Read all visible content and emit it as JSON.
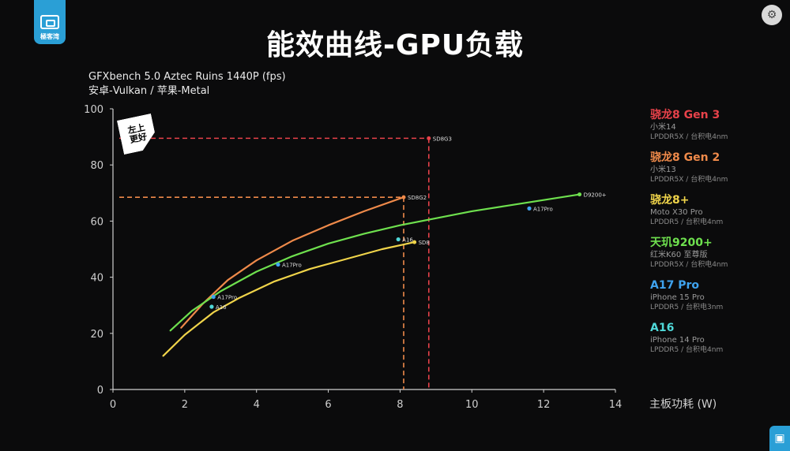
{
  "header": {
    "title": "能效曲线-GPU负载"
  },
  "logo": {
    "text": "極客湾"
  },
  "badge": {
    "text": "左上\n更好"
  },
  "chart_data": {
    "type": "line",
    "title": "GFXbench 5.0 Aztec Ruins 1440P (fps)",
    "subtitle": "安卓-Vulkan / 苹果-Metal",
    "xlabel": "主板功耗 (W)",
    "ylabel": "",
    "xlim": [
      0,
      14
    ],
    "ylim": [
      0,
      100
    ],
    "xticks": [
      0,
      2,
      4,
      6,
      8,
      10,
      12,
      14
    ],
    "yticks": [
      0,
      20,
      40,
      60,
      80,
      100
    ],
    "grid": false,
    "legend_position": "right",
    "series": [
      {
        "name": "骁龙8 Gen 3",
        "device": "小米14",
        "memory": "LPDDR5X / 台积电4nm",
        "color": "#e8424a",
        "x": [],
        "y": [],
        "marker": {
          "label": "SD8G3",
          "x": 8.8,
          "y": 89.5
        }
      },
      {
        "name": "骁龙8 Gen 2",
        "device": "小米13",
        "memory": "LPDDR5X / 台积电4nm",
        "color": "#ef8a4a",
        "x": [
          1.9,
          2.5,
          3.2,
          4.0,
          5.0,
          6.0,
          7.0,
          8.1
        ],
        "y": [
          22,
          30.5,
          39,
          46,
          53,
          58.5,
          63.5,
          68.5
        ],
        "marker": {
          "label": "SD8G2",
          "x": 8.1,
          "y": 68.5
        }
      },
      {
        "name": "骁龙8+",
        "device": "Moto X30 Pro",
        "memory": "LPDDR5 / 台积电4nm",
        "color": "#f0d44a",
        "x": [
          1.4,
          2.0,
          2.8,
          3.5,
          4.5,
          5.5,
          6.5,
          7.5,
          8.4
        ],
        "y": [
          12,
          19.5,
          27.5,
          32.5,
          38.5,
          43,
          46.5,
          50,
          52.5
        ],
        "marker": {
          "label": "SD8",
          "x": 8.4,
          "y": 52.5
        }
      },
      {
        "name": "天玑9200+",
        "device": "红米K60 至尊版",
        "memory": "LPDDR5X / 台积电4nm",
        "color": "#6ee04e",
        "x": [
          1.6,
          2.2,
          3.0,
          4.0,
          5.0,
          6.0,
          7.0,
          8.0,
          9.0,
          10.0,
          11.0,
          12.0,
          13.0
        ],
        "y": [
          21,
          28,
          35,
          42,
          47.5,
          52,
          55.5,
          58.5,
          61,
          63.5,
          65.5,
          67.5,
          69.5
        ],
        "marker": {
          "label": "D9200+",
          "x": 13.0,
          "y": 69.5
        }
      },
      {
        "name": "A17 Pro",
        "device": "iPhone 15 Pro",
        "memory": "LPDDR5 / 台积电3nm",
        "color": "#3fa3ef",
        "points": [
          {
            "label": "A17Pro",
            "x": 2.8,
            "y": 33
          },
          {
            "label": "A17Pro",
            "x": 4.6,
            "y": 44.5
          },
          {
            "label": "A17Pro",
            "x": 11.6,
            "y": 64.5
          }
        ]
      },
      {
        "name": "A16",
        "device": "iPhone 14 Pro",
        "memory": "LPDDR5 / 台积电4nm",
        "color": "#4fd8d8",
        "points": [
          {
            "label": "A16",
            "x": 2.75,
            "y": 29.5
          },
          {
            "label": "A16",
            "x": 7.95,
            "y": 53.5
          }
        ]
      }
    ],
    "reference_lines": [
      {
        "series": "骁龙8 Gen 3",
        "x": 8.8,
        "y": 89.5,
        "color": "#e8424a"
      },
      {
        "series": "骁龙8 Gen 2",
        "x": 8.1,
        "y": 68.5,
        "color": "#ef8a4a"
      }
    ]
  }
}
